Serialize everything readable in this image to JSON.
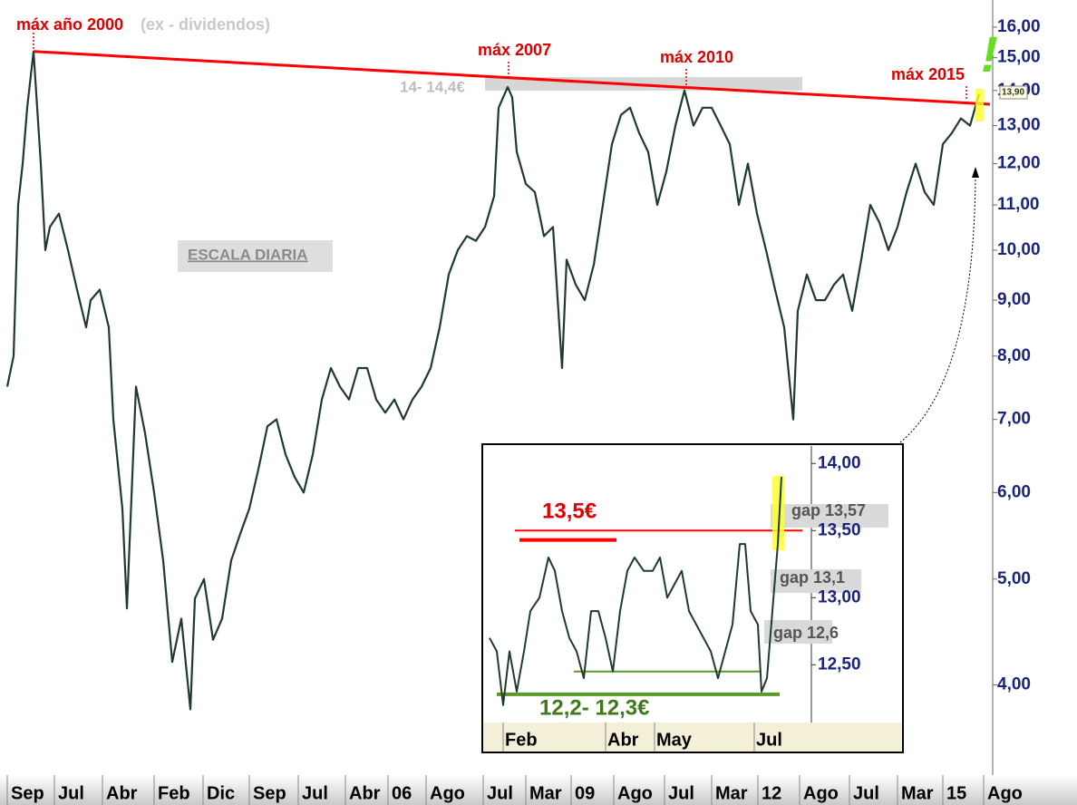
{
  "chart_data": [
    {
      "type": "line",
      "log_scale": true,
      "color": "#1f3b2c",
      "x": [
        8,
        15,
        20,
        25,
        30,
        37,
        45,
        50,
        55,
        65,
        75,
        85,
        95,
        100,
        110,
        120,
        125,
        135,
        140,
        150,
        160,
        170,
        180,
        190,
        200,
        210,
        215,
        225,
        235,
        245,
        255,
        265,
        275,
        285,
        295,
        305,
        315,
        325,
        335,
        345,
        355,
        365,
        375,
        385,
        395,
        405,
        415,
        425,
        435,
        445,
        455,
        465,
        475,
        485,
        495,
        505,
        515,
        525,
        535,
        545,
        550,
        560,
        565,
        570,
        580,
        590,
        600,
        610,
        620,
        625,
        635,
        645,
        655,
        665,
        675,
        685,
        695,
        705,
        715,
        725,
        735,
        745,
        755,
        765,
        775,
        785,
        795,
        805,
        815,
        825,
        835,
        845,
        855,
        865,
        875,
        880,
        890,
        900,
        910,
        920,
        930,
        940,
        950,
        960,
        970,
        980,
        990,
        1000,
        1010,
        1020,
        1030,
        1040,
        1050,
        1060,
        1070,
        1080
      ],
      "values": [
        7.5,
        8,
        11,
        12,
        13.5,
        15.2,
        12,
        10,
        10.5,
        10.8,
        10,
        9.2,
        8.5,
        9,
        9.2,
        8.5,
        7,
        5.8,
        4.7,
        7.5,
        6.8,
        6,
        5.2,
        4.2,
        4.6,
        3.8,
        4.8,
        5,
        4.4,
        4.6,
        5.2,
        5.5,
        5.8,
        6.3,
        6.9,
        7,
        6.5,
        6.2,
        6,
        6.5,
        7.3,
        7.8,
        7.5,
        7.3,
        7.8,
        7.8,
        7.3,
        7.1,
        7.3,
        7,
        7.3,
        7.5,
        7.8,
        8.5,
        9.5,
        10,
        10.3,
        10.2,
        10.5,
        11.2,
        13.5,
        14.1,
        13.8,
        12.3,
        11.5,
        11.3,
        10.3,
        10.5,
        7.8,
        9.8,
        9.3,
        9,
        9.7,
        11,
        12.5,
        13.3,
        13.5,
        12.8,
        12.3,
        11,
        11.8,
        13,
        14,
        13,
        13.5,
        13.5,
        13,
        12.5,
        11,
        12,
        10.8,
        10,
        9.2,
        8.5,
        7,
        8.8,
        9.5,
        9,
        9,
        9.3,
        9.5,
        8.8,
        9.8,
        11,
        10.6,
        10,
        10.5,
        11.3,
        12,
        11.3,
        11,
        12.5,
        12.8,
        13.2,
        13,
        13.9
      ],
      "xlim": [
        0,
        1095
      ],
      "ylim": [
        3.47,
        16.62
      ],
      "xticks": [
        {
          "value": 8,
          "label": "Sep"
        },
        {
          "value": 60,
          "label": "Jul"
        },
        {
          "value": 113,
          "label": "Abr"
        },
        {
          "value": 170,
          "label": "Feb"
        },
        {
          "value": 224,
          "label": "Dic"
        },
        {
          "value": 275,
          "label": "Sep"
        },
        {
          "value": 329,
          "label": "Jul"
        },
        {
          "value": 381,
          "label": "Abr"
        },
        {
          "value": 428,
          "label": "06"
        },
        {
          "value": 470,
          "label": "Ago"
        },
        {
          "value": 533,
          "label": "Jul"
        },
        {
          "value": 580,
          "label": "Mar"
        },
        {
          "value": 630,
          "label": "09"
        },
        {
          "value": 677,
          "label": "Ago"
        },
        {
          "value": 733,
          "label": "Jul"
        },
        {
          "value": 785,
          "label": "Mar"
        },
        {
          "value": 836,
          "label": "12"
        },
        {
          "value": 882,
          "label": "Ago"
        },
        {
          "value": 937,
          "label": "Jul"
        },
        {
          "value": 990,
          "label": "Mar"
        },
        {
          "value": 1040,
          "label": "15"
        },
        {
          "value": 1085,
          "label": "Ago"
        }
      ],
      "yticks": [
        {
          "value": 4,
          "label": "4,00"
        },
        {
          "value": 5,
          "label": "5,00"
        },
        {
          "value": 6,
          "label": "6,00"
        },
        {
          "value": 7,
          "label": "7,00"
        },
        {
          "value": 8,
          "label": "8,00"
        },
        {
          "value": 9,
          "label": "9,00"
        },
        {
          "value": 10,
          "label": "10,00"
        },
        {
          "value": 11,
          "label": "11,00"
        },
        {
          "value": 12,
          "label": "12,00"
        },
        {
          "value": 13,
          "label": "13,00"
        },
        {
          "value": 14,
          "label": "14,00"
        },
        {
          "value": 15,
          "label": "15,00"
        },
        {
          "value": 16,
          "label": "16,00"
        }
      ],
      "resistance": {
        "x": [
          37,
          1092
        ],
        "values": [
          15.2,
          13.6
        ]
      },
      "band": {
        "x": [
          535,
          885
        ],
        "values": [
          14,
          14.4
        ]
      },
      "annotations": [
        "máx año 2000",
        "(ex - dividendos)",
        "máx 2007",
        "máx 2010",
        "máx 2015",
        "14- 14,4€",
        "ESCALA DIARIA",
        "13,90",
        "!"
      ]
    },
    {
      "type": "line",
      "color": "#1f3b2c",
      "x": [
        540,
        548,
        555,
        562,
        570,
        578,
        585,
        595,
        605,
        612,
        620,
        628,
        636,
        644,
        652,
        660,
        668,
        676,
        684,
        692,
        700,
        710,
        720,
        728,
        736,
        744,
        752,
        760,
        768,
        776,
        784,
        792,
        800,
        808,
        816,
        822,
        828,
        836,
        840,
        846,
        852,
        858,
        862
      ],
      "values": [
        12.7,
        12.6,
        12.2,
        12.6,
        12.3,
        12.6,
        12.9,
        13,
        13.3,
        13.2,
        12.9,
        12.7,
        12.6,
        12.4,
        12.9,
        12.9,
        12.7,
        12.45,
        12.9,
        13.2,
        13.3,
        13.2,
        13.2,
        13.3,
        13,
        13.1,
        13.2,
        12.9,
        12.8,
        12.7,
        12.6,
        12.4,
        12.6,
        12.8,
        13.4,
        13.4,
        12.9,
        12.8,
        12.3,
        12.4,
        12.9,
        13.4,
        13.9
      ],
      "xlim": [
        535,
        895
      ],
      "ylim": [
        12.07,
        14.13
      ],
      "xticks": [
        {
          "value": 555,
          "label": "Feb"
        },
        {
          "value": 668,
          "label": "Abr"
        },
        {
          "value": 722,
          "label": "May"
        },
        {
          "value": 832,
          "label": "Jul"
        }
      ],
      "yticks": [
        {
          "value": 12.5,
          "label": "12,50"
        },
        {
          "value": 13,
          "label": "13,00"
        },
        {
          "value": 13.5,
          "label": "13,50"
        },
        {
          "value": 14,
          "label": "14,00"
        }
      ],
      "levels": [
        {
          "value": 13.5,
          "x": [
            568,
            885
          ],
          "color": "#ff0000"
        },
        {
          "value": 13.43,
          "x": [
            573,
            680
          ],
          "color": "#ff0000"
        },
        {
          "value": 12.45,
          "x": [
            633,
            840
          ],
          "color": "#5a9a2a"
        },
        {
          "value": 12.28,
          "x": [
            548,
            860
          ],
          "color": "#5a9a2a"
        }
      ],
      "annotations": [
        "13,5€",
        "12,2- 12,3€",
        "gap 13,57",
        "gap 13,1",
        "gap 12,6"
      ]
    }
  ]
}
